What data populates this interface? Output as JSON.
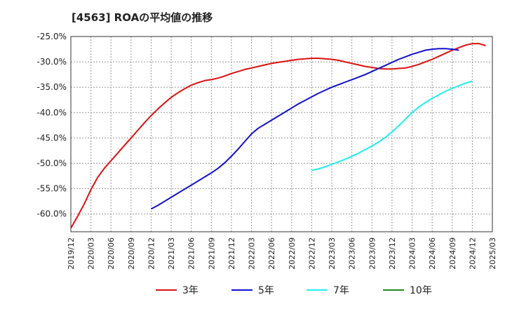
{
  "chart_data": {
    "type": "line",
    "title": "[4563]  ROAの平均値の推移",
    "xlabel": "",
    "ylabel": "",
    "ylim": [
      -63.5,
      -25.0
    ],
    "y_ticks": [
      -25.0,
      -30.0,
      -35.0,
      -40.0,
      -45.0,
      -50.0,
      -55.0,
      -60.0
    ],
    "y_tick_labels": [
      "-25.0%",
      "-30.0%",
      "-35.0%",
      "-40.0%",
      "-45.0%",
      "-50.0%",
      "-55.0%",
      "-60.0%"
    ],
    "x_tick_labels": [
      "2019/12",
      "2020/03",
      "2020/06",
      "2020/09",
      "2020/12",
      "2021/03",
      "2021/06",
      "2021/09",
      "2021/12",
      "2022/03",
      "2022/06",
      "2022/09",
      "2022/12",
      "2023/03",
      "2023/06",
      "2023/09",
      "2023/12",
      "2024/03",
      "2024/06",
      "2024/09",
      "2024/12",
      "2025/03"
    ],
    "grid": true,
    "legend_position": "bottom",
    "series": [
      {
        "name": "3年",
        "color": "#dd1111",
        "points": [
          [
            0,
            -62.8
          ],
          [
            1,
            -60.5
          ],
          [
            2,
            -58.0
          ],
          [
            3,
            -55.2
          ],
          [
            4,
            -52.8
          ],
          [
            5,
            -51.0
          ],
          [
            6,
            -49.5
          ],
          [
            7,
            -48.0
          ],
          [
            8,
            -46.5
          ],
          [
            9,
            -45.0
          ],
          [
            10,
            -43.5
          ],
          [
            11,
            -42.0
          ],
          [
            12,
            -40.6
          ],
          [
            13,
            -39.3
          ],
          [
            14,
            -38.1
          ],
          [
            15,
            -37.0
          ],
          [
            16,
            -36.1
          ],
          [
            17,
            -35.3
          ],
          [
            18,
            -34.6
          ],
          [
            19,
            -34.1
          ],
          [
            20,
            -33.7
          ],
          [
            21,
            -33.5
          ],
          [
            22,
            -33.2
          ],
          [
            23,
            -32.8
          ],
          [
            24,
            -32.3
          ],
          [
            25,
            -31.9
          ],
          [
            26,
            -31.5
          ],
          [
            27,
            -31.2
          ],
          [
            28,
            -30.9
          ],
          [
            29,
            -30.6
          ],
          [
            30,
            -30.3
          ],
          [
            31,
            -30.1
          ],
          [
            32,
            -29.9
          ],
          [
            33,
            -29.7
          ],
          [
            34,
            -29.5
          ],
          [
            35,
            -29.4
          ],
          [
            36,
            -29.3
          ],
          [
            37,
            -29.3
          ],
          [
            38,
            -29.4
          ],
          [
            39,
            -29.5
          ],
          [
            40,
            -29.7
          ],
          [
            41,
            -30.0
          ],
          [
            42,
            -30.3
          ],
          [
            43,
            -30.6
          ],
          [
            44,
            -30.9
          ],
          [
            45,
            -31.1
          ],
          [
            46,
            -31.3
          ],
          [
            47,
            -31.4
          ],
          [
            48,
            -31.4
          ],
          [
            49,
            -31.3
          ],
          [
            50,
            -31.2
          ],
          [
            51,
            -30.9
          ],
          [
            52,
            -30.5
          ],
          [
            53,
            -30.0
          ],
          [
            54,
            -29.5
          ],
          [
            55,
            -28.9
          ],
          [
            56,
            -28.3
          ],
          [
            57,
            -27.7
          ],
          [
            58,
            -27.2
          ],
          [
            59,
            -26.7
          ],
          [
            60,
            -26.4
          ],
          [
            61,
            -26.4
          ],
          [
            62,
            -26.8
          ]
        ]
      },
      {
        "name": "5年",
        "color": "#1111cc",
        "points": [
          [
            12,
            -59.0
          ],
          [
            13,
            -58.3
          ],
          [
            14,
            -57.5
          ],
          [
            15,
            -56.7
          ],
          [
            16,
            -55.9
          ],
          [
            17,
            -55.1
          ],
          [
            18,
            -54.3
          ],
          [
            19,
            -53.5
          ],
          [
            20,
            -52.7
          ],
          [
            21,
            -51.9
          ],
          [
            22,
            -51.0
          ],
          [
            23,
            -49.9
          ],
          [
            24,
            -48.6
          ],
          [
            25,
            -47.2
          ],
          [
            26,
            -45.7
          ],
          [
            27,
            -44.2
          ],
          [
            28,
            -43.1
          ],
          [
            29,
            -42.3
          ],
          [
            30,
            -41.5
          ],
          [
            31,
            -40.7
          ],
          [
            32,
            -39.9
          ],
          [
            33,
            -39.1
          ],
          [
            34,
            -38.3
          ],
          [
            35,
            -37.6
          ],
          [
            36,
            -36.9
          ],
          [
            37,
            -36.2
          ],
          [
            38,
            -35.6
          ],
          [
            39,
            -35.0
          ],
          [
            40,
            -34.5
          ],
          [
            41,
            -34.0
          ],
          [
            42,
            -33.5
          ],
          [
            43,
            -33.0
          ],
          [
            44,
            -32.5
          ],
          [
            45,
            -31.9
          ],
          [
            46,
            -31.3
          ],
          [
            47,
            -30.7
          ],
          [
            48,
            -30.1
          ],
          [
            49,
            -29.5
          ],
          [
            50,
            -29.0
          ],
          [
            51,
            -28.5
          ],
          [
            52,
            -28.1
          ],
          [
            53,
            -27.7
          ],
          [
            54,
            -27.5
          ],
          [
            55,
            -27.4
          ],
          [
            56,
            -27.4
          ],
          [
            57,
            -27.5
          ],
          [
            58,
            -27.7
          ]
        ]
      },
      {
        "name": "7年",
        "color": "#22eeee",
        "points": [
          [
            36,
            -51.4
          ],
          [
            37,
            -51.1
          ],
          [
            38,
            -50.7
          ],
          [
            39,
            -50.2
          ],
          [
            40,
            -49.7
          ],
          [
            41,
            -49.2
          ],
          [
            42,
            -48.6
          ],
          [
            43,
            -48.0
          ],
          [
            44,
            -47.3
          ],
          [
            45,
            -46.6
          ],
          [
            46,
            -45.8
          ],
          [
            47,
            -44.9
          ],
          [
            48,
            -43.8
          ],
          [
            49,
            -42.6
          ],
          [
            50,
            -41.3
          ],
          [
            51,
            -40.0
          ],
          [
            52,
            -38.9
          ],
          [
            53,
            -38.0
          ],
          [
            54,
            -37.2
          ],
          [
            55,
            -36.5
          ],
          [
            56,
            -35.8
          ],
          [
            57,
            -35.2
          ],
          [
            58,
            -34.7
          ],
          [
            59,
            -34.2
          ],
          [
            60,
            -33.8
          ]
        ]
      },
      {
        "name": "10年",
        "color": "#228822",
        "points": []
      }
    ]
  }
}
